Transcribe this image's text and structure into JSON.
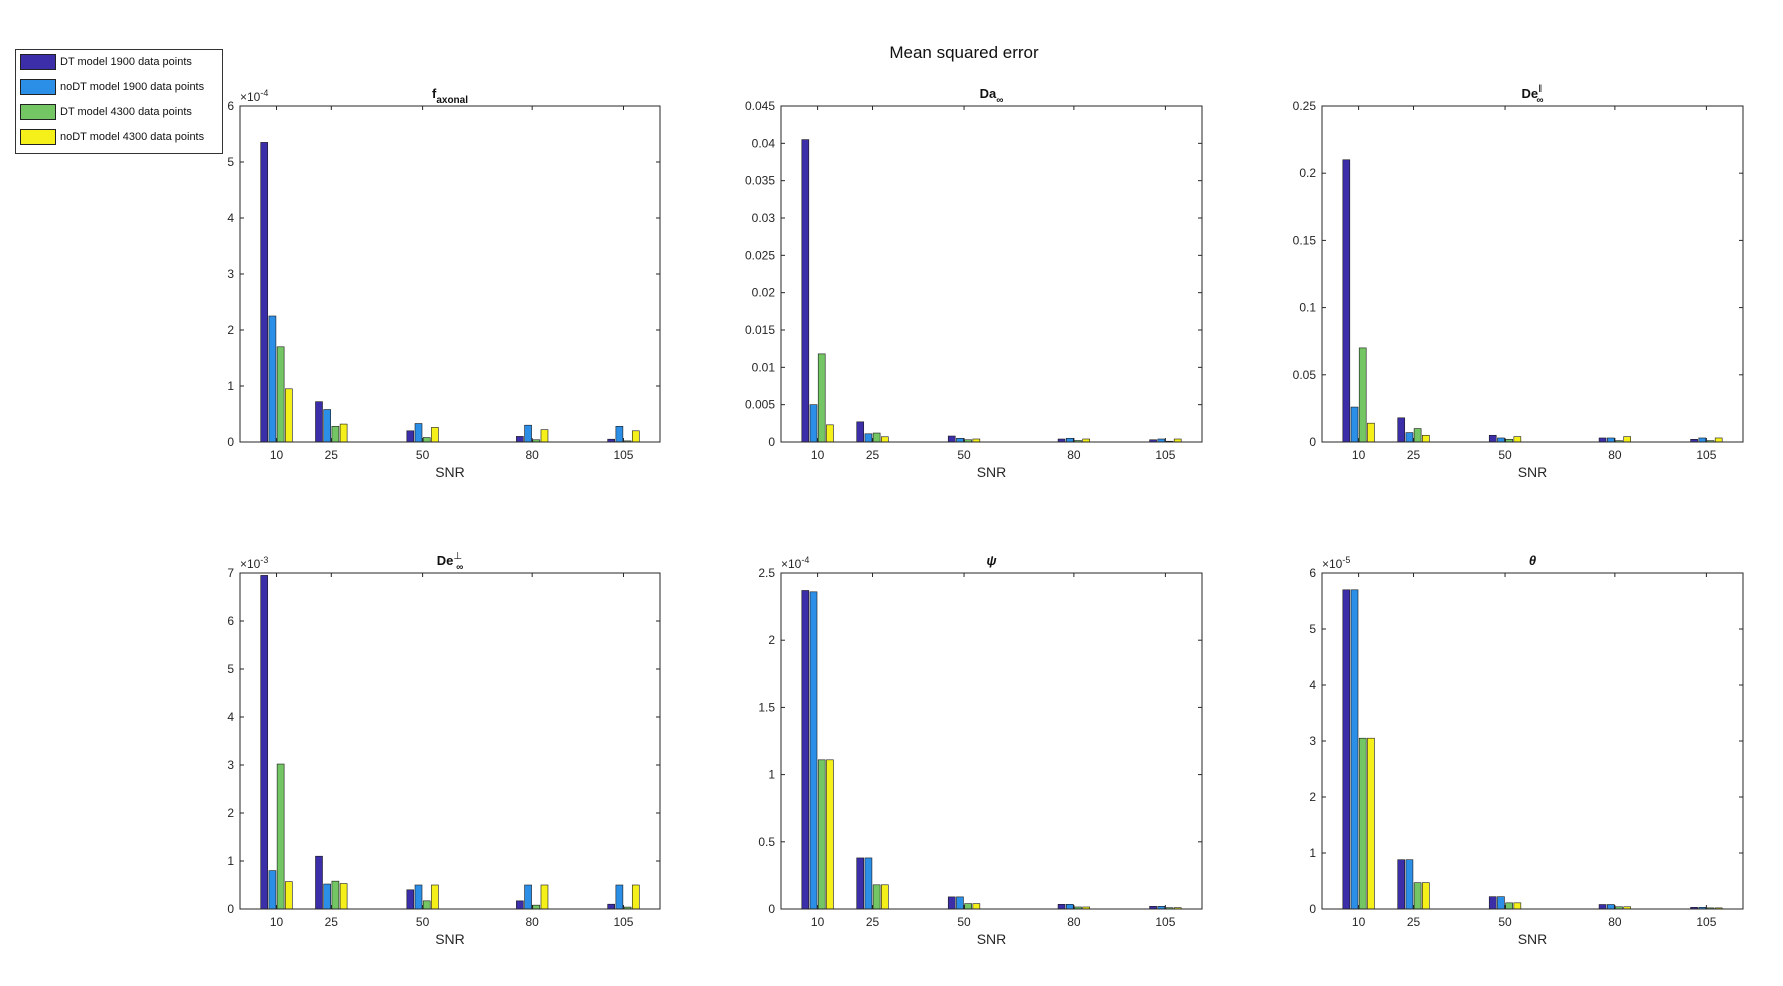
{
  "figure": {
    "title": "Mean squared error"
  },
  "legend": {
    "entries": [
      {
        "label": "DT model 1900 data points",
        "color": "#3b2ea8"
      },
      {
        "label": "noDT model 1900 data points",
        "color": "#2b8fe8"
      },
      {
        "label": "DT model 4300 data points",
        "color": "#73c663"
      },
      {
        "label": "noDT model 4300 data points",
        "color": "#f5f01a"
      }
    ]
  },
  "chart_data": [
    {
      "type": "bar",
      "title": "f",
      "title_sub": "axonal",
      "title_sup": "",
      "title_italic": false,
      "xlabel": "SNR",
      "x": [
        10,
        25,
        50,
        80,
        105
      ],
      "xlim": [
        0,
        115
      ],
      "ylim": [
        0,
        6
      ],
      "yticks": [
        0,
        1,
        2,
        3,
        4,
        5,
        6
      ],
      "exponent": "-4",
      "series": [
        {
          "values": [
            5.35,
            0.72,
            0.2,
            0.1,
            0.05
          ]
        },
        {
          "values": [
            2.25,
            0.58,
            0.33,
            0.3,
            0.28
          ]
        },
        {
          "values": [
            1.7,
            0.28,
            0.08,
            0.04,
            0.02
          ]
        },
        {
          "values": [
            0.95,
            0.32,
            0.26,
            0.22,
            0.2
          ]
        }
      ]
    },
    {
      "type": "bar",
      "title": "Da",
      "title_sub": "∞",
      "title_sup": "",
      "title_italic": false,
      "xlabel": "SNR",
      "x": [
        10,
        25,
        50,
        80,
        105
      ],
      "xlim": [
        0,
        115
      ],
      "ylim": [
        0,
        0.045
      ],
      "yticks": [
        0,
        0.005,
        0.01,
        0.015,
        0.02,
        0.025,
        0.03,
        0.035,
        0.04,
        0.045
      ],
      "exponent": "",
      "series": [
        {
          "values": [
            0.0405,
            0.0027,
            0.0008,
            0.0004,
            0.0003
          ]
        },
        {
          "values": [
            0.005,
            0.0011,
            0.0005,
            0.0005,
            0.0004
          ]
        },
        {
          "values": [
            0.0118,
            0.0012,
            0.0003,
            0.0002,
            0.0001
          ]
        },
        {
          "values": [
            0.0023,
            0.0007,
            0.0004,
            0.0004,
            0.0004
          ]
        }
      ]
    },
    {
      "type": "bar",
      "title": "De",
      "title_sub": "∞",
      "title_sup": "‖",
      "title_italic": false,
      "xlabel": "SNR",
      "x": [
        10,
        25,
        50,
        80,
        105
      ],
      "xlim": [
        0,
        115
      ],
      "ylim": [
        0,
        0.25
      ],
      "yticks": [
        0,
        0.05,
        0.1,
        0.15,
        0.2,
        0.25
      ],
      "exponent": "",
      "series": [
        {
          "values": [
            0.21,
            0.018,
            0.005,
            0.003,
            0.002
          ]
        },
        {
          "values": [
            0.026,
            0.007,
            0.003,
            0.003,
            0.003
          ]
        },
        {
          "values": [
            0.07,
            0.01,
            0.002,
            0.001,
            0.001
          ]
        },
        {
          "values": [
            0.014,
            0.005,
            0.004,
            0.004,
            0.003
          ]
        }
      ]
    },
    {
      "type": "bar",
      "title": "De",
      "title_sub": "∞",
      "title_sup": "⊥",
      "title_italic": false,
      "xlabel": "SNR",
      "x": [
        10,
        25,
        50,
        80,
        105
      ],
      "xlim": [
        0,
        115
      ],
      "ylim": [
        0,
        7
      ],
      "yticks": [
        0,
        1,
        2,
        3,
        4,
        5,
        6,
        7
      ],
      "exponent": "-3",
      "series": [
        {
          "values": [
            6.95,
            1.1,
            0.4,
            0.17,
            0.1
          ]
        },
        {
          "values": [
            0.8,
            0.52,
            0.5,
            0.5,
            0.5
          ]
        },
        {
          "values": [
            3.02,
            0.58,
            0.17,
            0.08,
            0.04
          ]
        },
        {
          "values": [
            0.57,
            0.53,
            0.5,
            0.5,
            0.5
          ]
        }
      ]
    },
    {
      "type": "bar",
      "title": "ψ",
      "title_sub": "",
      "title_sup": "",
      "title_italic": true,
      "xlabel": "SNR",
      "x": [
        10,
        25,
        50,
        80,
        105
      ],
      "xlim": [
        0,
        115
      ],
      "ylim": [
        0,
        2.5
      ],
      "yticks": [
        0,
        0.5,
        1,
        1.5,
        2,
        2.5
      ],
      "exponent": "-4",
      "series": [
        {
          "values": [
            2.37,
            0.38,
            0.09,
            0.035,
            0.02
          ]
        },
        {
          "values": [
            2.36,
            0.38,
            0.09,
            0.035,
            0.02
          ]
        },
        {
          "values": [
            1.11,
            0.18,
            0.04,
            0.015,
            0.01
          ]
        },
        {
          "values": [
            1.11,
            0.18,
            0.04,
            0.015,
            0.01
          ]
        }
      ]
    },
    {
      "type": "bar",
      "title": "θ",
      "title_sub": "",
      "title_sup": "",
      "title_italic": true,
      "xlabel": "SNR",
      "x": [
        10,
        25,
        50,
        80,
        105
      ],
      "xlim": [
        0,
        115
      ],
      "ylim": [
        0,
        6
      ],
      "yticks": [
        0,
        1,
        2,
        3,
        4,
        5,
        6
      ],
      "exponent": "-5",
      "series": [
        {
          "values": [
            5.7,
            0.88,
            0.22,
            0.08,
            0.03
          ]
        },
        {
          "values": [
            5.7,
            0.88,
            0.22,
            0.08,
            0.03
          ]
        },
        {
          "values": [
            3.05,
            0.47,
            0.11,
            0.04,
            0.02
          ]
        },
        {
          "values": [
            3.05,
            0.47,
            0.11,
            0.04,
            0.02
          ]
        }
      ]
    }
  ]
}
